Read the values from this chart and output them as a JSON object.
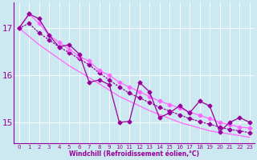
{
  "xlabel": "Windchill (Refroidissement éolien,°C)",
  "bg_color": "#cce8f0",
  "line_color": "#990099",
  "line_color2": "#ff66ff",
  "xlim": [
    -0.5,
    23.5
  ],
  "ylim": [
    14.55,
    17.55
  ],
  "yticks": [
    15,
    16,
    17
  ],
  "xticks": [
    0,
    1,
    2,
    3,
    4,
    5,
    6,
    7,
    8,
    9,
    10,
    11,
    12,
    13,
    14,
    15,
    16,
    17,
    18,
    19,
    20,
    21,
    22,
    23
  ],
  "series_main": [
    [
      0,
      17.0
    ],
    [
      1,
      17.3
    ],
    [
      2,
      17.2
    ],
    [
      3,
      16.85
    ],
    [
      4,
      16.6
    ],
    [
      5,
      16.65
    ],
    [
      6,
      16.45
    ],
    [
      7,
      15.85
    ],
    [
      8,
      15.9
    ],
    [
      9,
      15.8
    ],
    [
      10,
      15.0
    ],
    [
      11,
      15.02
    ],
    [
      12,
      15.85
    ],
    [
      13,
      15.65
    ],
    [
      14,
      15.1
    ],
    [
      15,
      15.2
    ],
    [
      16,
      15.35
    ],
    [
      17,
      15.2
    ],
    [
      18,
      15.45
    ],
    [
      19,
      15.35
    ],
    [
      20,
      14.8
    ],
    [
      21,
      15.0
    ],
    [
      22,
      15.1
    ],
    [
      23,
      15.0
    ]
  ],
  "series_upper": [
    [
      0,
      17.0
    ],
    [
      1,
      17.3
    ],
    [
      2,
      17.1
    ],
    [
      3,
      16.85
    ],
    [
      4,
      16.7
    ],
    [
      5,
      16.55
    ],
    [
      6,
      16.4
    ],
    [
      7,
      16.3
    ],
    [
      8,
      16.1
    ],
    [
      9,
      16.0
    ],
    [
      10,
      15.85
    ],
    [
      11,
      15.75
    ],
    [
      12,
      15.65
    ],
    [
      13,
      15.55
    ],
    [
      14,
      15.45
    ],
    [
      15,
      15.38
    ],
    [
      16,
      15.3
    ],
    [
      17,
      15.22
    ],
    [
      18,
      15.15
    ],
    [
      19,
      15.08
    ],
    [
      20,
      15.0
    ],
    [
      21,
      14.95
    ],
    [
      22,
      14.9
    ],
    [
      23,
      14.88
    ]
  ],
  "series_mid": [
    [
      0,
      17.0
    ],
    [
      1,
      17.1
    ],
    [
      2,
      16.9
    ],
    [
      3,
      16.75
    ],
    [
      4,
      16.6
    ],
    [
      5,
      16.48
    ],
    [
      6,
      16.35
    ],
    [
      7,
      16.22
    ],
    [
      8,
      16.05
    ],
    [
      9,
      15.9
    ],
    [
      10,
      15.75
    ],
    [
      11,
      15.62
    ],
    [
      12,
      15.52
    ],
    [
      13,
      15.42
    ],
    [
      14,
      15.32
    ],
    [
      15,
      15.24
    ],
    [
      16,
      15.16
    ],
    [
      17,
      15.08
    ],
    [
      18,
      15.02
    ],
    [
      19,
      14.96
    ],
    [
      20,
      14.9
    ],
    [
      21,
      14.85
    ],
    [
      22,
      14.82
    ],
    [
      23,
      14.78
    ]
  ],
  "series_lower": [
    [
      0,
      17.0
    ],
    [
      2,
      16.65
    ],
    [
      5,
      16.2
    ],
    [
      7,
      15.95
    ],
    [
      10,
      15.55
    ],
    [
      13,
      15.25
    ],
    [
      16,
      15.0
    ],
    [
      19,
      14.82
    ],
    [
      22,
      14.72
    ],
    [
      23,
      14.68
    ]
  ]
}
